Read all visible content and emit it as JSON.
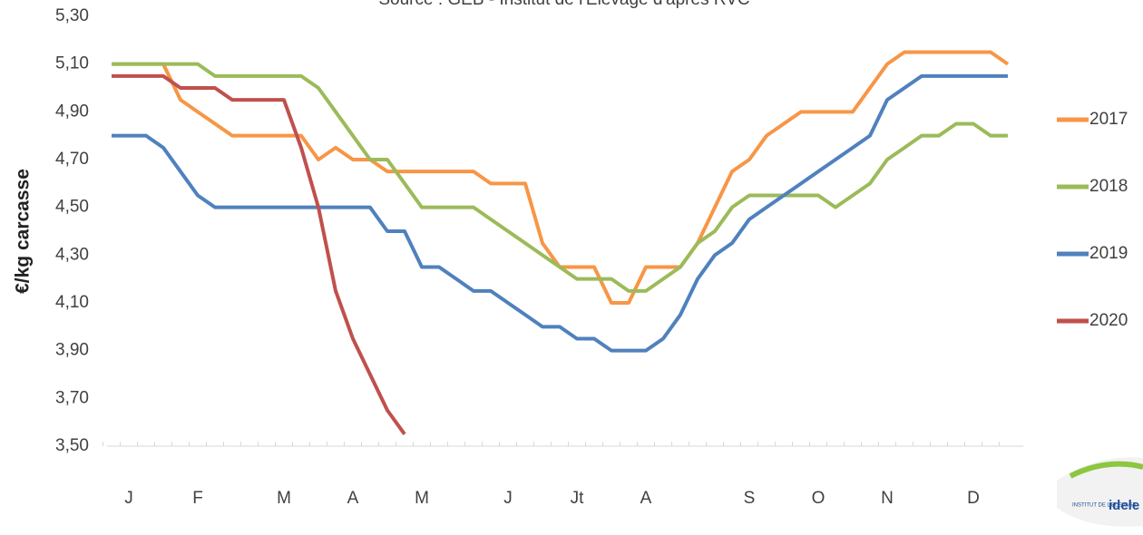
{
  "chart_data": {
    "type": "line",
    "subtitle": "Source : GEB - Institut de l'Elevage d'après RVC",
    "y_label": "€/kg carcasse",
    "categories": [
      null,
      "J",
      null,
      null,
      null,
      "F",
      null,
      null,
      null,
      null,
      "M",
      null,
      null,
      null,
      "A",
      null,
      null,
      null,
      "M",
      null,
      null,
      null,
      null,
      "J",
      null,
      null,
      null,
      "Jt",
      null,
      null,
      null,
      "A",
      null,
      null,
      null,
      null,
      null,
      "S",
      null,
      null,
      null,
      "O",
      null,
      null,
      null,
      "N",
      null,
      null,
      null,
      null,
      "D",
      null,
      null
    ],
    "ylim": [
      3.5,
      5.3
    ],
    "yticks": [
      {
        "value": 3.5,
        "label": "3,50"
      },
      {
        "value": 3.7,
        "label": "3,70"
      },
      {
        "value": 3.9,
        "label": "3,90"
      },
      {
        "value": 4.1,
        "label": "4,10"
      },
      {
        "value": 4.3,
        "label": "4,30"
      },
      {
        "value": 4.5,
        "label": "4,50"
      },
      {
        "value": 4.7,
        "label": "4,70"
      },
      {
        "value": 4.9,
        "label": "4,90"
      },
      {
        "value": 5.1,
        "label": "5,10"
      },
      {
        "value": 5.3,
        "label": "5,30"
      }
    ],
    "grid": false,
    "legend": "right",
    "series": [
      {
        "name": "2017",
        "color": "#f79646",
        "values": [
          5.1,
          5.1,
          5.1,
          5.1,
          4.95,
          4.9,
          4.85,
          4.8,
          4.8,
          4.8,
          4.8,
          4.8,
          4.7,
          4.75,
          4.7,
          4.7,
          4.65,
          4.65,
          4.65,
          4.65,
          4.65,
          4.65,
          4.6,
          4.6,
          4.6,
          4.35,
          4.25,
          4.25,
          4.25,
          4.1,
          4.1,
          4.25,
          4.25,
          4.25,
          4.35,
          4.5,
          4.65,
          4.7,
          4.8,
          4.85,
          4.9,
          4.9,
          4.9,
          4.9,
          5.0,
          5.1,
          5.15,
          5.15,
          5.15,
          5.15,
          5.15,
          5.15,
          5.1
        ]
      },
      {
        "name": "2018",
        "color": "#9bbb59",
        "values": [
          5.1,
          5.1,
          5.1,
          5.1,
          5.1,
          5.1,
          5.05,
          5.05,
          5.05,
          5.05,
          5.05,
          5.05,
          5.0,
          4.9,
          4.8,
          4.7,
          4.7,
          4.6,
          4.5,
          4.5,
          4.5,
          4.5,
          4.45,
          4.4,
          4.35,
          4.3,
          4.25,
          4.2,
          4.2,
          4.2,
          4.15,
          4.15,
          4.2,
          4.25,
          4.35,
          4.4,
          4.5,
          4.55,
          4.55,
          4.55,
          4.55,
          4.55,
          4.5,
          4.55,
          4.6,
          4.7,
          4.75,
          4.8,
          4.8,
          4.85,
          4.85,
          4.8,
          4.8
        ]
      },
      {
        "name": "2019",
        "color": "#4f81bd",
        "values": [
          4.8,
          4.8,
          4.8,
          4.75,
          4.65,
          4.55,
          4.5,
          4.5,
          4.5,
          4.5,
          4.5,
          4.5,
          4.5,
          4.5,
          4.5,
          4.5,
          4.4,
          4.4,
          4.25,
          4.25,
          4.2,
          4.15,
          4.15,
          4.1,
          4.05,
          4.0,
          4.0,
          3.95,
          3.95,
          3.9,
          3.9,
          3.9,
          3.95,
          4.05,
          4.2,
          4.3,
          4.35,
          4.45,
          4.5,
          4.55,
          4.6,
          4.65,
          4.7,
          4.75,
          4.8,
          4.95,
          5.0,
          5.05,
          5.05,
          5.05,
          5.05,
          5.05,
          5.05
        ]
      },
      {
        "name": "2020",
        "color": "#c0504d",
        "values": [
          5.05,
          5.05,
          5.05,
          5.05,
          5.0,
          5.0,
          5.0,
          4.95,
          4.95,
          4.95,
          4.95,
          4.75,
          4.5,
          4.15,
          3.95,
          3.8,
          3.65,
          3.55,
          null,
          null,
          null,
          null,
          null,
          null,
          null,
          null,
          null,
          null,
          null,
          null,
          null,
          null,
          null,
          null,
          null,
          null,
          null,
          null,
          null,
          null,
          null,
          null,
          null,
          null,
          null,
          null,
          null,
          null,
          null,
          null,
          null,
          null,
          null
        ]
      }
    ]
  },
  "logo": {
    "small": "INSTITUT DE L'ELEVAGE",
    "brand": "idele"
  }
}
